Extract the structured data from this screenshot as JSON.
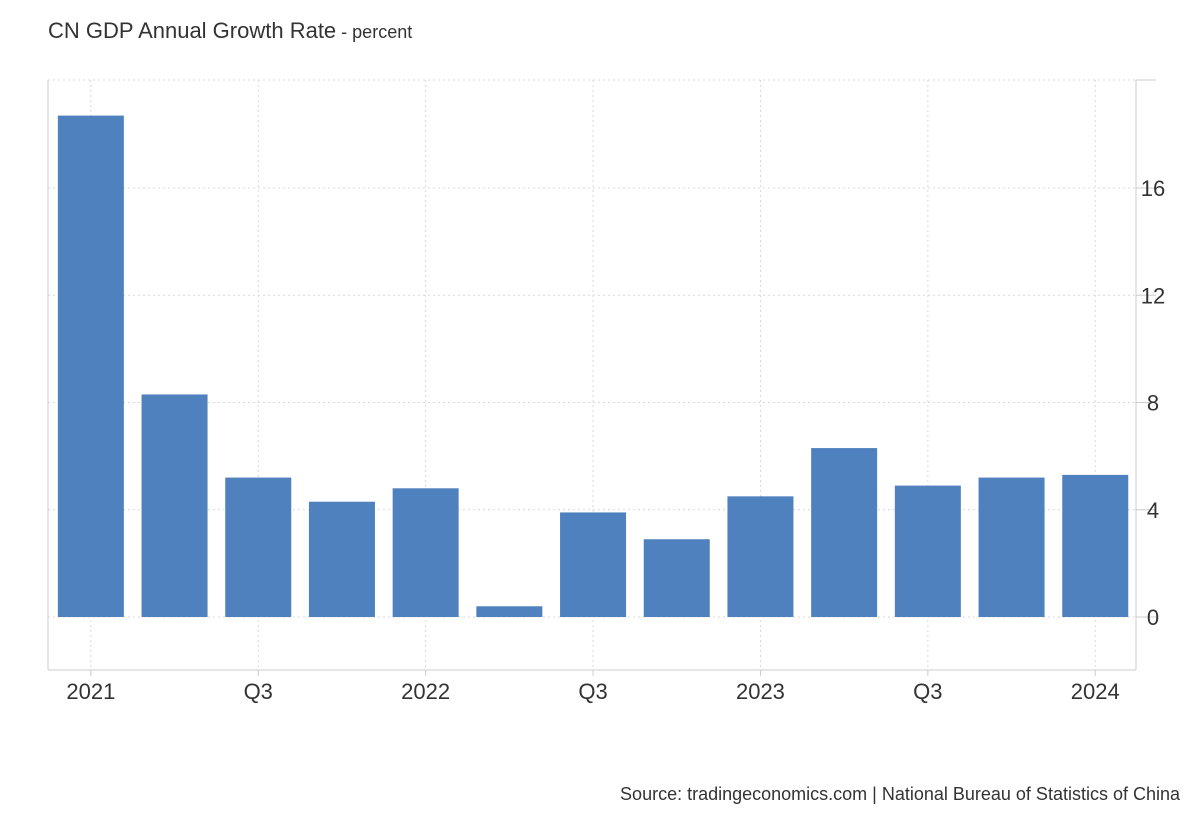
{
  "chart_data": {
    "type": "bar",
    "title": "CN GDP Annual Growth Rate",
    "unit": "percent",
    "title_separator": " - ",
    "source": "Source: tradingeconomics.com | National Bureau of Statistics of China",
    "categories": [
      "2021 Q1",
      "2021 Q2",
      "2021 Q3",
      "2021 Q4",
      "2022 Q1",
      "2022 Q2",
      "2022 Q3",
      "2022 Q4",
      "2023 Q1",
      "2023 Q2",
      "2023 Q3",
      "2023 Q4",
      "2024 Q1"
    ],
    "values": [
      18.7,
      8.3,
      5.2,
      4.3,
      4.8,
      0.4,
      3.9,
      2.9,
      4.5,
      6.3,
      4.9,
      5.2,
      5.3
    ],
    "x_tick_labels": [
      "2021",
      "Q3",
      "2022",
      "Q3",
      "2023",
      "Q3",
      "2024"
    ],
    "y_ticks": [
      0,
      4,
      8,
      12,
      16
    ],
    "ylim": [
      -2,
      20
    ],
    "xlabel": "",
    "ylabel": "",
    "grid": true,
    "y_axis_position": "right",
    "bar_color": "#4e81bd"
  }
}
